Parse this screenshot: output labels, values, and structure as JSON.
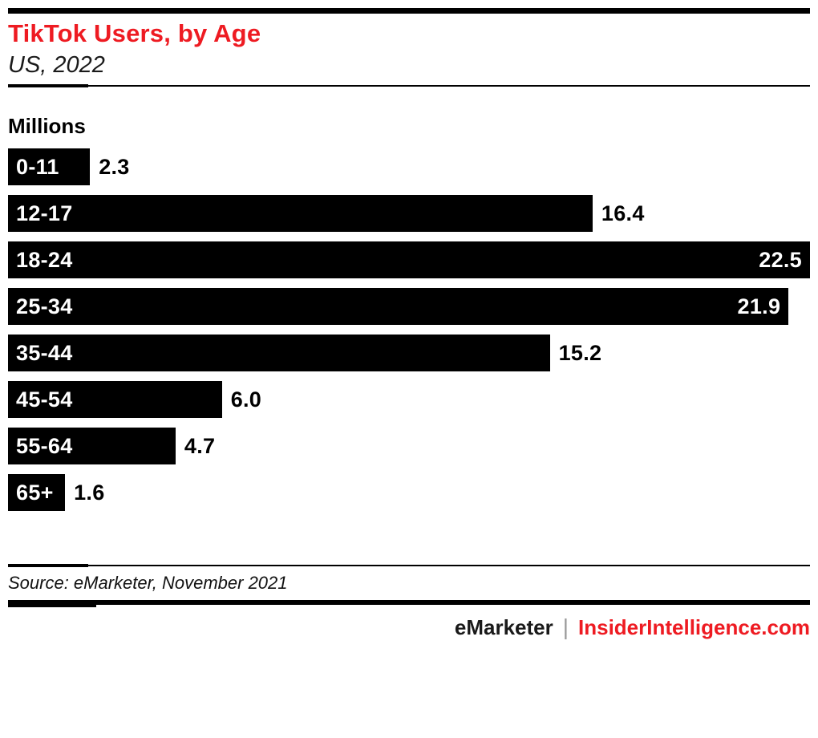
{
  "page": {
    "background": "#ffffff",
    "accent_red": "#EE1B22",
    "bar_color": "#000000"
  },
  "header": {
    "title": "TikTok Users, by Age",
    "subtitle": "US, 2022"
  },
  "chart_data": {
    "type": "bar",
    "orientation": "horizontal",
    "title": "TikTok Users, by Age",
    "subtitle": "US, 2022",
    "unit_label": "Millions",
    "categories": [
      "0-11",
      "12-17",
      "18-24",
      "25-34",
      "35-44",
      "45-54",
      "55-64",
      "65+"
    ],
    "values": [
      2.3,
      16.4,
      22.5,
      21.9,
      15.2,
      6.0,
      4.7,
      1.6
    ],
    "value_labels": [
      "2.3",
      "16.4",
      "22.5",
      "21.9",
      "15.2",
      "6.0",
      "4.7",
      "1.6"
    ],
    "xlim": [
      0,
      22.5
    ],
    "grid": false,
    "legend": false,
    "bar_fill": "#000000",
    "category_label_position": "inside-left",
    "value_label_position": "inside-right when bar nearly full, otherwise outside-right"
  },
  "footer": {
    "source_label": "Source: eMarketer, November 2021",
    "brand_left": "eMarketer",
    "brand_divider": "|",
    "brand_right": "InsiderIntelligence.com"
  }
}
